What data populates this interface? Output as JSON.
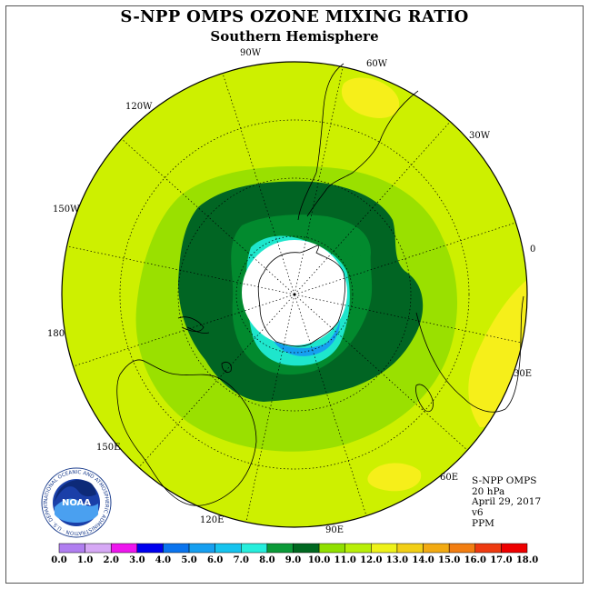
{
  "title": "S-NPP OMPS OZONE MIXING RATIO",
  "subtitle": "Southern Hemisphere",
  "longitude_labels": [
    {
      "key": "lon_90w",
      "text": "90W"
    },
    {
      "key": "lon_60w",
      "text": "60W"
    },
    {
      "key": "lon_30w",
      "text": "30W"
    },
    {
      "key": "lon_0",
      "text": "0"
    },
    {
      "key": "lon_30e",
      "text": "30E"
    },
    {
      "key": "lon_60e",
      "text": "60E"
    },
    {
      "key": "lon_90e",
      "text": "90E"
    },
    {
      "key": "lon_120e",
      "text": "120E"
    },
    {
      "key": "lon_150e",
      "text": "150E"
    },
    {
      "key": "lon_180",
      "text": "180"
    },
    {
      "key": "lon_150w",
      "text": "150W"
    },
    {
      "key": "lon_120w",
      "text": "120W"
    }
  ],
  "info": {
    "instrument": "S-NPP OMPS",
    "level": "20 hPa",
    "date": "April 29, 2017",
    "version": "v6",
    "units": "PPM"
  },
  "logo": {
    "text": "NOAA",
    "ring_text": "NATIONAL OCEANIC AND ATMOSPHERIC ADMINISTRATION · U.S. DEPARTMENT OF COMMERCE"
  },
  "colorbar": {
    "labels": [
      "0.0",
      "1.0",
      "2.0",
      "3.0",
      "4.0",
      "5.0",
      "6.0",
      "7.0",
      "8.0",
      "9.0",
      "10.0",
      "11.0",
      "12.0",
      "13.0",
      "14.0",
      "15.0",
      "16.0",
      "17.0",
      "18.0"
    ],
    "colors": [
      "#b07ef0",
      "#d6a8f5",
      "#ee16ee",
      "#0000ee",
      "#0a74ee",
      "#169ff0",
      "#16c3ee",
      "#26eedc",
      "#0b9a38",
      "#006820",
      "#90e000",
      "#b8ef08",
      "#eef21a",
      "#f2cf16",
      "#f2aa12",
      "#f27e12",
      "#ee3a10",
      "#ee0000",
      "#8a5a3a"
    ]
  },
  "palette": {
    "background_field": "#cdf000",
    "ring_11": "#9ae000",
    "ring_9": "#028a2e",
    "ring_10": "#016523",
    "ring_8": "#1ee6cc",
    "ring_low": "#169ff0",
    "high_13": "#f6ef1a",
    "polar_void": "#ffffff"
  }
}
